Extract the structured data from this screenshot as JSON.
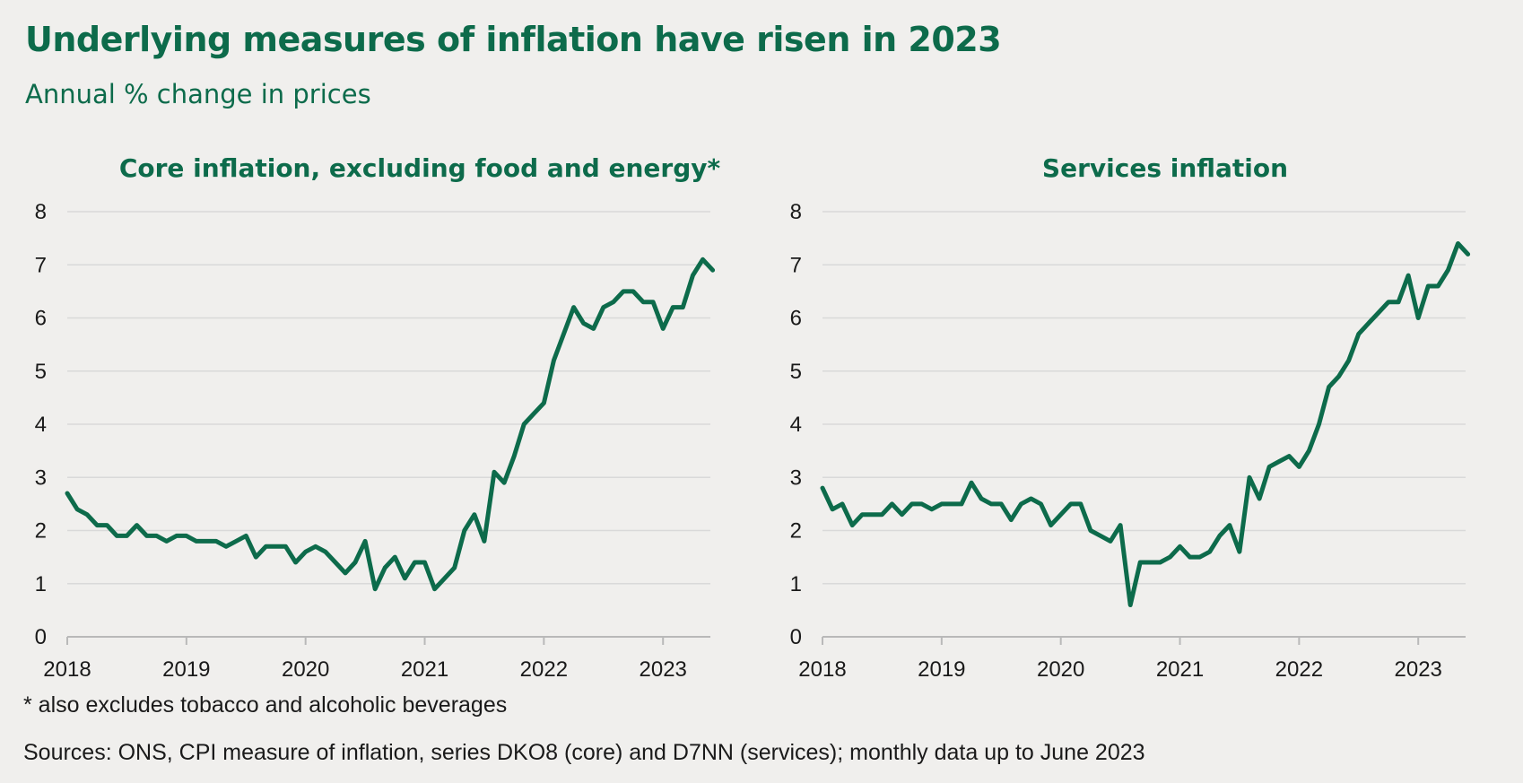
{
  "title": "Underlying measures of inflation have risen in 2023",
  "subtitle": "Annual % change in prices",
  "footnote": "* also excludes tobacco and alcoholic beverages",
  "sources": "Sources: ONS, CPI measure of inflation, series DKO8 (core) and D7NN (services); monthly data up to June 2023",
  "colors": {
    "series": "#0d6b4b",
    "title": "#0d6b4b",
    "background": "#f0efed",
    "grid": "#d9d9d9"
  },
  "chart_data": [
    {
      "type": "line",
      "title": "Core inflation, excluding food and energy*",
      "xlabel": "",
      "ylabel": "",
      "ylim": [
        0,
        8
      ],
      "yticks": [
        "0",
        "1",
        "2",
        "3",
        "4",
        "5",
        "6",
        "7",
        "8"
      ],
      "xticks": [
        "2018",
        "2019",
        "2020",
        "2021",
        "2022",
        "2023"
      ],
      "x_start": "2018-01",
      "x_end": "2023-06",
      "grid": true,
      "series": [
        {
          "values": [
            2.7,
            2.4,
            2.3,
            2.1,
            2.1,
            1.9,
            1.9,
            2.1,
            1.9,
            1.9,
            1.8,
            1.9,
            1.9,
            1.8,
            1.8,
            1.8,
            1.7,
            1.8,
            1.9,
            1.5,
            1.7,
            1.7,
            1.7,
            1.4,
            1.6,
            1.7,
            1.6,
            1.4,
            1.2,
            1.4,
            1.8,
            0.9,
            1.3,
            1.5,
            1.1,
            1.4,
            1.4,
            0.9,
            1.1,
            1.3,
            2.0,
            2.3,
            1.8,
            3.1,
            2.9,
            3.4,
            4.0,
            4.2,
            4.4,
            5.2,
            5.7,
            6.2,
            5.9,
            5.8,
            6.2,
            6.3,
            6.5,
            6.5,
            6.3,
            6.3,
            5.8,
            6.2,
            6.2,
            6.8,
            7.1,
            6.9
          ]
        }
      ]
    },
    {
      "type": "line",
      "title": "Services inflation",
      "xlabel": "",
      "ylabel": "",
      "ylim": [
        0,
        8
      ],
      "yticks": [
        "0",
        "1",
        "2",
        "3",
        "4",
        "5",
        "6",
        "7",
        "8"
      ],
      "xticks": [
        "2018",
        "2019",
        "2020",
        "2021",
        "2022",
        "2023"
      ],
      "x_start": "2018-01",
      "x_end": "2023-06",
      "grid": true,
      "series": [
        {
          "values": [
            2.8,
            2.4,
            2.5,
            2.1,
            2.3,
            2.3,
            2.3,
            2.5,
            2.3,
            2.5,
            2.5,
            2.4,
            2.5,
            2.5,
            2.5,
            2.9,
            2.6,
            2.5,
            2.5,
            2.2,
            2.5,
            2.6,
            2.5,
            2.1,
            2.3,
            2.5,
            2.5,
            2.0,
            1.9,
            1.8,
            2.1,
            0.6,
            1.4,
            1.4,
            1.4,
            1.5,
            1.7,
            1.5,
            1.5,
            1.6,
            1.9,
            2.1,
            1.6,
            3.0,
            2.6,
            3.2,
            3.3,
            3.4,
            3.2,
            3.5,
            4.0,
            4.7,
            4.9,
            5.2,
            5.7,
            5.9,
            6.1,
            6.3,
            6.3,
            6.8,
            6.0,
            6.6,
            6.6,
            6.9,
            7.4,
            7.2
          ]
        }
      ]
    }
  ]
}
